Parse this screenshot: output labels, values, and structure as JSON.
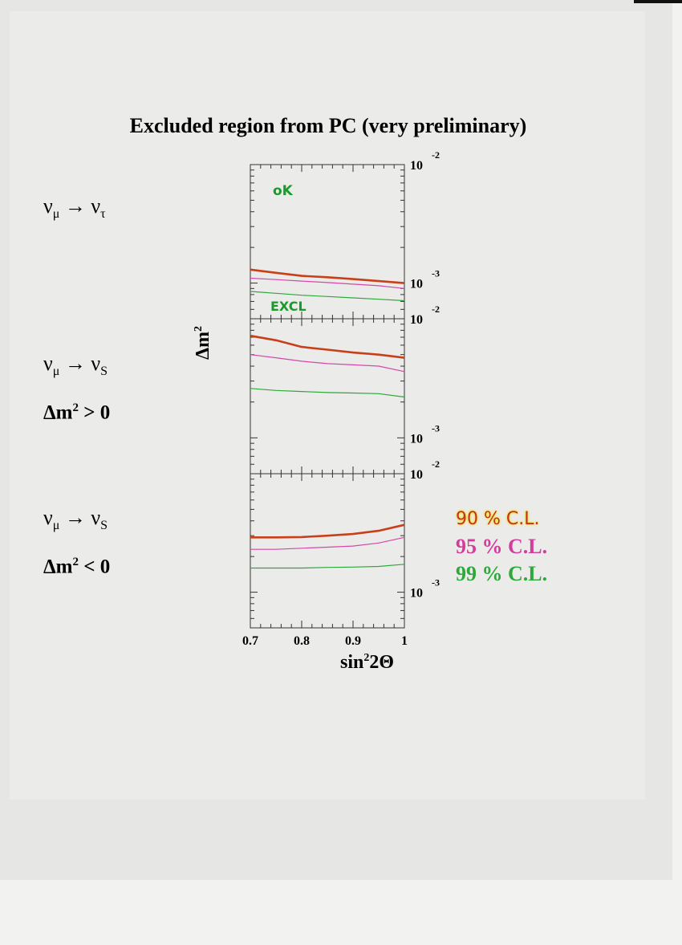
{
  "title": "Excluded region from PC (very preliminary)",
  "panels": [
    {
      "nu_from": "ν",
      "sub_from": "μ",
      "arrow": "→",
      "nu_to": "ν",
      "sub_to": "τ",
      "condition": "",
      "note_top": "oK",
      "note_bottom": "EXCL"
    },
    {
      "nu_from": "ν",
      "sub_from": "μ",
      "arrow": "→",
      "nu_to": "ν",
      "sub_to": "S",
      "condition": "Δm² > 0"
    },
    {
      "nu_from": "ν",
      "sub_from": "μ",
      "arrow": "→",
      "nu_to": "ν",
      "sub_to": "S",
      "condition": "Δm² < 0"
    }
  ],
  "conditions": {
    "pos_base": "Δm",
    "pos_sup": "2",
    "pos_rest": " > 0",
    "neg_base": "Δm",
    "neg_sup": "2",
    "neg_rest": " < 0"
  },
  "axes": {
    "xlabel_base": "sin",
    "xlabel_sup": "2",
    "xlabel_rest": "2Θ",
    "ylabel_base": "Δm",
    "ylabel_sup": "2",
    "xticks": [
      "0.7",
      "0.8",
      "0.9",
      "1"
    ],
    "ytick_base": "10",
    "ytick_exp_top": "-2",
    "ytick_exp_mid": "-3"
  },
  "legend": {
    "cl90": "90 % C.L.",
    "cl95": "95 % C.L.",
    "cl99": "99 % C.L."
  },
  "colors": {
    "cl90": "#c8401a",
    "cl95": "#d448a8",
    "cl99": "#2ea83a",
    "notes": "#1a9a2a"
  },
  "chart_data": [
    {
      "type": "line",
      "title": "ν_μ → ν_τ",
      "xlim": [
        0.7,
        1.0
      ],
      "ylim": [
        0.0005,
        0.01
      ],
      "yscale": "log",
      "x": [
        0.7,
        0.75,
        0.8,
        0.85,
        0.9,
        0.95,
        1.0
      ],
      "series": [
        {
          "name": "90 % C.L.",
          "values": [
            0.0013,
            0.00122,
            0.00115,
            0.00112,
            0.00108,
            0.00104,
            0.001
          ]
        },
        {
          "name": "95 % C.L.",
          "values": [
            0.0011,
            0.00107,
            0.00104,
            0.00101,
            0.00098,
            0.00095,
            0.0009
          ]
        },
        {
          "name": "99 % C.L.",
          "values": [
            0.00085,
            0.00082,
            0.00079,
            0.00077,
            0.00075,
            0.00073,
            0.00071
          ]
        }
      ]
    },
    {
      "type": "line",
      "title": "ν_μ → ν_S, Δm² > 0",
      "xlim": [
        0.7,
        1.0
      ],
      "ylim": [
        0.0005,
        0.01
      ],
      "yscale": "log",
      "x": [
        0.7,
        0.75,
        0.8,
        0.85,
        0.9,
        0.95,
        1.0
      ],
      "series": [
        {
          "name": "90 % C.L.",
          "values": [
            0.0072,
            0.0066,
            0.0058,
            0.0055,
            0.0052,
            0.005,
            0.0047
          ]
        },
        {
          "name": "95 % C.L.",
          "values": [
            0.005,
            0.0047,
            0.0044,
            0.0042,
            0.0041,
            0.004,
            0.0036
          ]
        },
        {
          "name": "99 % C.L.",
          "values": [
            0.0026,
            0.0025,
            0.00245,
            0.0024,
            0.00238,
            0.00235,
            0.0022
          ]
        }
      ]
    },
    {
      "type": "line",
      "title": "ν_μ → ν_S, Δm² < 0",
      "xlim": [
        0.7,
        1.0
      ],
      "ylim": [
        0.0005,
        0.01
      ],
      "yscale": "log",
      "x": [
        0.7,
        0.75,
        0.8,
        0.85,
        0.9,
        0.95,
        1.0
      ],
      "series": [
        {
          "name": "90 % C.L.",
          "values": [
            0.0029,
            0.0029,
            0.00292,
            0.003,
            0.0031,
            0.0033,
            0.0037
          ]
        },
        {
          "name": "95 % C.L.",
          "values": [
            0.0023,
            0.0023,
            0.00235,
            0.0024,
            0.00245,
            0.0026,
            0.0029
          ]
        },
        {
          "name": "99 % C.L.",
          "values": [
            0.0016,
            0.0016,
            0.0016,
            0.00162,
            0.00163,
            0.00165,
            0.00172
          ]
        }
      ]
    }
  ]
}
